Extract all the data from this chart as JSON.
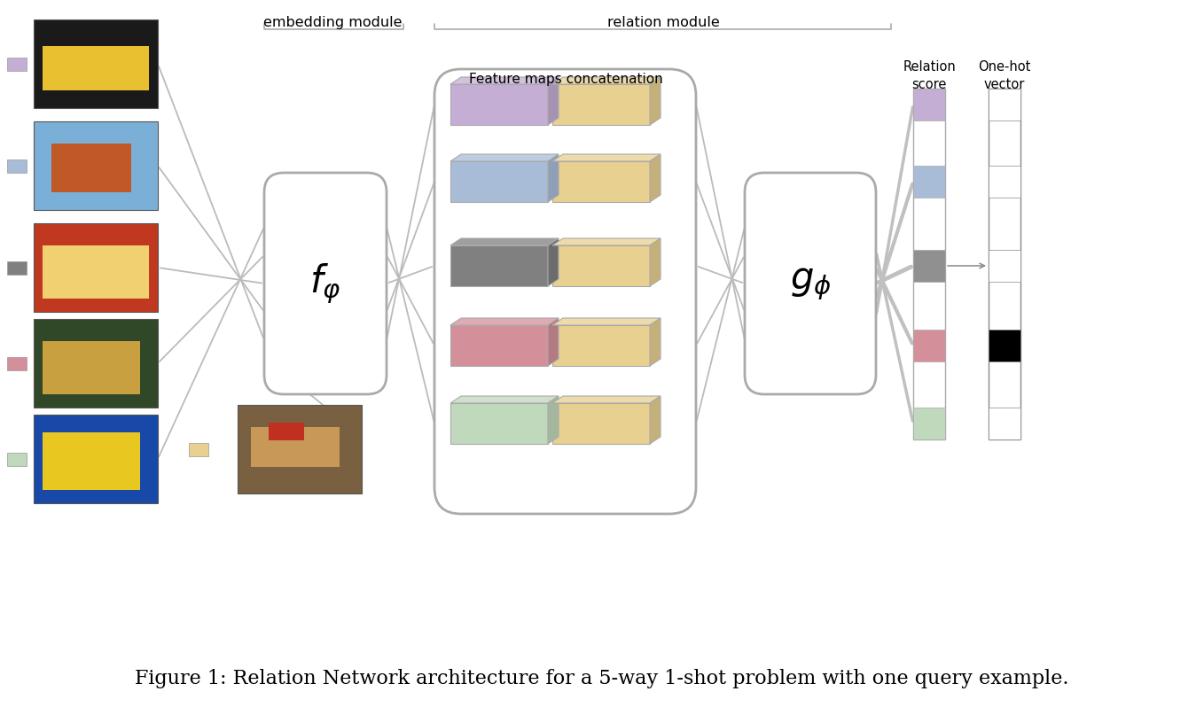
{
  "title": "Figure 1: Relation Network architecture for a 5-way 1-shot problem with one query example.",
  "title_fontsize": 16,
  "background_color": "#ffffff",
  "embedding_module_label": "embedding module",
  "relation_module_label": "relation module",
  "feature_maps_label": "Feature maps concatenation",
  "f_phi_label": "$f_{\\varphi}$",
  "g_phi_label": "$g_{\\phi}$",
  "relation_score_label": "Relation\nscore",
  "one_hot_label": "One-hot\nvector",
  "row_colors_left": [
    "#c4aed4",
    "#a8bcd8",
    "#808080",
    "#d4909a",
    "#c0d8bc"
  ],
  "row_colors_right": [
    "#e8d090",
    "#e8d090",
    "#e8d090",
    "#e8d090",
    "#e8d090"
  ],
  "score_colors": [
    "#c4aed4",
    "#a8bcd8",
    "#909090",
    "#d4909a",
    "#c0d8bc"
  ],
  "one_hot_fill": [
    "#ffffff",
    "#ffffff",
    "#ffffff",
    "#000000",
    "#ffffff"
  ],
  "line_color": "#bbbbbb",
  "box_edge_color": "#aaaaaa"
}
